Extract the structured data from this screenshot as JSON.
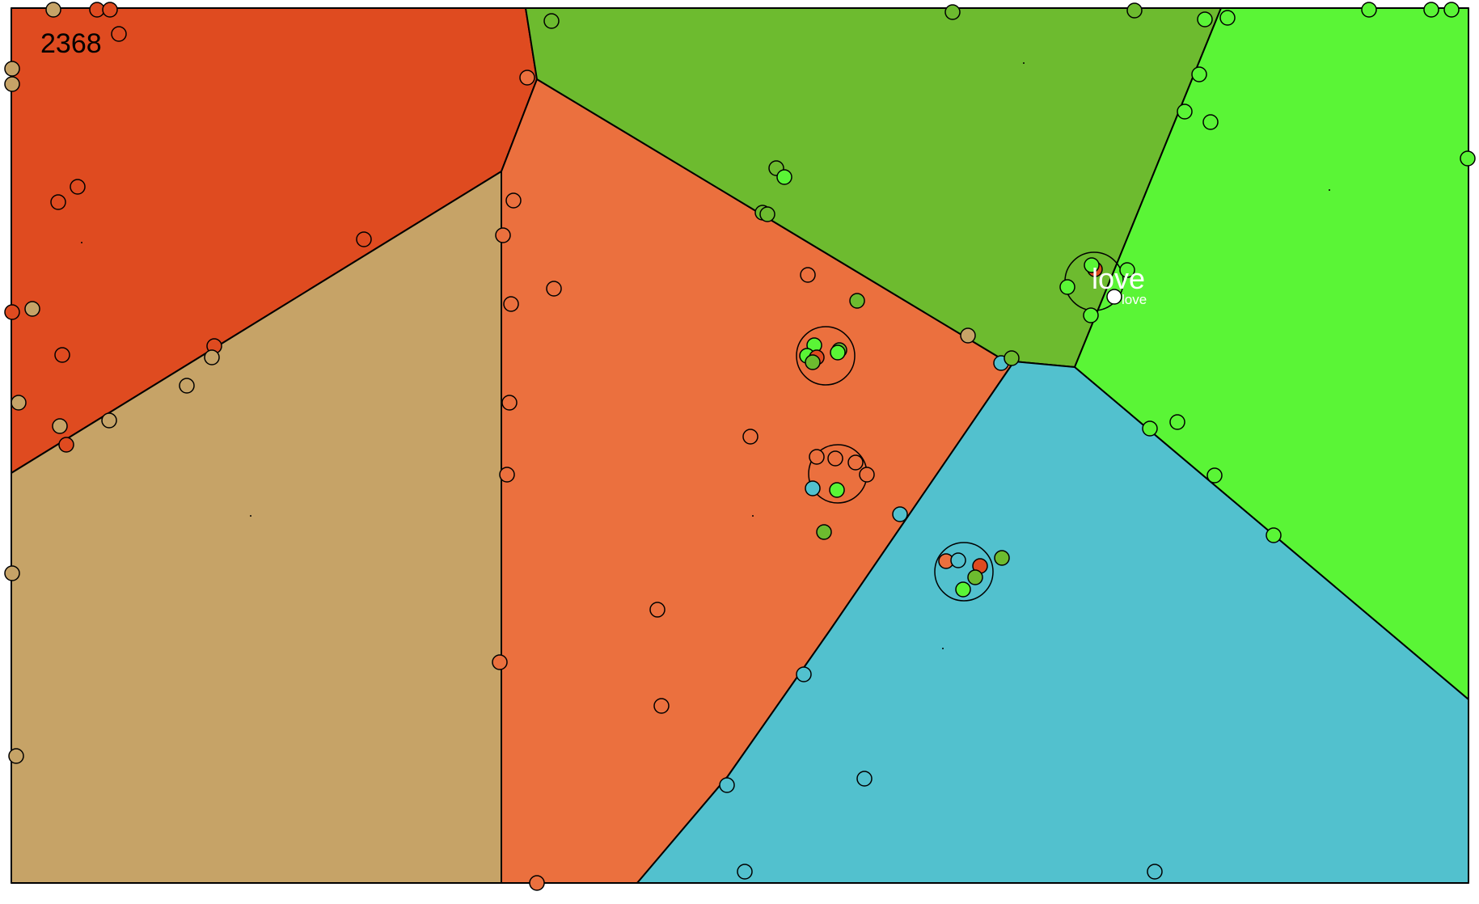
{
  "game": {
    "score": "2368",
    "player_label": "love",
    "player_small_label": "love"
  },
  "palette": {
    "red": "#df4b20",
    "orange": "#eb703e",
    "tan": "#c6a367",
    "olive": "#6dbb2f",
    "lime": "#5af536",
    "teal": "#52c1ce",
    "white": "#ffffff",
    "stroke": "#000000"
  },
  "territories": [
    {
      "id": "red",
      "color": "red"
    },
    {
      "id": "orange",
      "color": "orange"
    },
    {
      "id": "tan",
      "color": "tan"
    },
    {
      "id": "olive",
      "color": "olive"
    },
    {
      "id": "lime",
      "color": "lime"
    },
    {
      "id": "teal",
      "color": "teal"
    }
  ],
  "clusters": [
    {
      "name": "cluster-1",
      "members": [
        "lime",
        "lime",
        "olive",
        "lime",
        "red"
      ]
    },
    {
      "name": "cluster-2",
      "members": [
        "orange",
        "orange",
        "orange",
        "orange",
        "teal",
        "lime"
      ]
    },
    {
      "name": "cluster-3",
      "members": [
        "orange",
        "teal",
        "red",
        "olive",
        "lime"
      ]
    },
    {
      "name": "player-cluster",
      "members": [
        "lime",
        "red",
        "lime",
        "lime",
        "white"
      ]
    }
  ]
}
